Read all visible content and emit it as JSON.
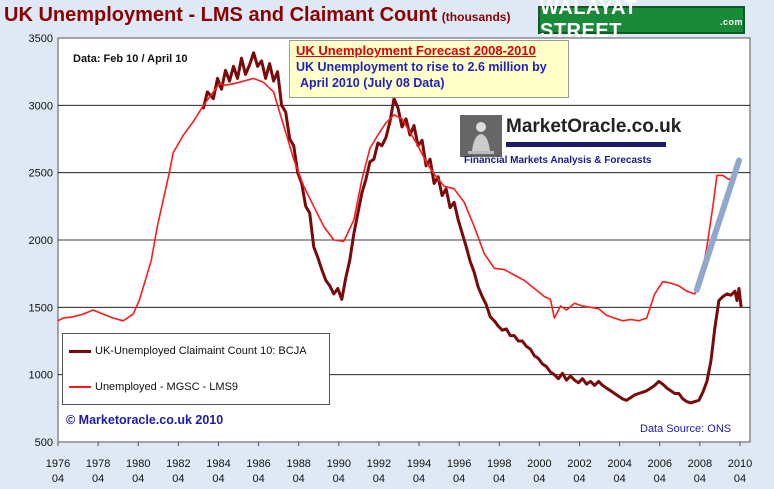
{
  "header": {
    "title": "UK Unemployment - LMS and Claimant Count",
    "title_units": "(thousands)",
    "brand": "WALAYAT STREET",
    "brand_suffix": ".com"
  },
  "forecast_box": {
    "heading": "UK Unemployment  Forecast  2008-2010",
    "line1": "UK Unemployment to rise to 2.6 million by",
    "line2": "April 2010  (July 08 Data)"
  },
  "logo": {
    "name": "MarketOracle.co.uk",
    "tagline": "Financial Markets Analysis & Forecasts"
  },
  "data_note": "Data: Feb 10 / April 10",
  "copyright": "© Marketoracle.co.uk  2010",
  "source": "Data Source: ONS",
  "colors": {
    "claimant": "#7a0a0a",
    "lms": "#ff1a1a",
    "forecast": "#8fa8cc",
    "plot_bg": "#ffffff",
    "page_bg": "#dfe9f5"
  },
  "chart_data": {
    "type": "line",
    "title": "UK Unemployment - LMS and Claimant Count",
    "ylim": [
      500,
      3500
    ],
    "yticks": [
      500,
      1000,
      1500,
      2000,
      2500,
      3000,
      3500
    ],
    "xlim": [
      1976.25,
      2010.75
    ],
    "xticks": [
      {
        "year": "1976",
        "month": "04"
      },
      {
        "year": "1978",
        "month": "04"
      },
      {
        "year": "1980",
        "month": "04"
      },
      {
        "year": "1982",
        "month": "04"
      },
      {
        "year": "1984",
        "month": "04"
      },
      {
        "year": "1986",
        "month": "04"
      },
      {
        "year": "1988",
        "month": "04"
      },
      {
        "year": "1990",
        "month": "04"
      },
      {
        "year": "1992",
        "month": "04"
      },
      {
        "year": "1994",
        "month": "04"
      },
      {
        "year": "1996",
        "month": "04"
      },
      {
        "year": "1998",
        "month": "04"
      },
      {
        "year": "2000",
        "month": "04"
      },
      {
        "year": "2002",
        "month": "04"
      },
      {
        "year": "2004",
        "month": "04"
      },
      {
        "year": "2006",
        "month": "04"
      },
      {
        "year": "2008",
        "month": "04"
      },
      {
        "year": "2010",
        "month": "04"
      }
    ],
    "grid": "horizontal",
    "legend_position": "bottom-left",
    "series": [
      {
        "name": "UK-Unemployed Claimaint Count 10: BCJA",
        "color": "#7a0a0a",
        "points": [
          [
            1983.5,
            2980
          ],
          [
            1983.7,
            3100
          ],
          [
            1984.0,
            3050
          ],
          [
            1984.2,
            3200
          ],
          [
            1984.4,
            3120
          ],
          [
            1984.6,
            3260
          ],
          [
            1984.8,
            3180
          ],
          [
            1985.0,
            3290
          ],
          [
            1985.2,
            3200
          ],
          [
            1985.4,
            3350
          ],
          [
            1985.6,
            3230
          ],
          [
            1985.8,
            3300
          ],
          [
            1986.0,
            3390
          ],
          [
            1986.2,
            3290
          ],
          [
            1986.4,
            3330
          ],
          [
            1986.6,
            3200
          ],
          [
            1986.8,
            3310
          ],
          [
            1987.0,
            3180
          ],
          [
            1987.2,
            3250
          ],
          [
            1987.4,
            3000
          ],
          [
            1987.6,
            2950
          ],
          [
            1987.8,
            2750
          ],
          [
            1988.0,
            2700
          ],
          [
            1988.2,
            2500
          ],
          [
            1988.4,
            2420
          ],
          [
            1988.6,
            2250
          ],
          [
            1988.8,
            2200
          ],
          [
            1989.0,
            1950
          ],
          [
            1989.2,
            1870
          ],
          [
            1989.4,
            1780
          ],
          [
            1989.6,
            1700
          ],
          [
            1989.8,
            1660
          ],
          [
            1990.0,
            1600
          ],
          [
            1990.2,
            1640
          ],
          [
            1990.4,
            1560
          ],
          [
            1990.6,
            1720
          ],
          [
            1990.8,
            1850
          ],
          [
            1991.0,
            2050
          ],
          [
            1991.2,
            2200
          ],
          [
            1991.4,
            2350
          ],
          [
            1991.6,
            2450
          ],
          [
            1991.8,
            2580
          ],
          [
            1992.0,
            2600
          ],
          [
            1992.2,
            2720
          ],
          [
            1992.4,
            2700
          ],
          [
            1992.6,
            2760
          ],
          [
            1992.8,
            2880
          ],
          [
            1993.0,
            3050
          ],
          [
            1993.2,
            2980
          ],
          [
            1993.4,
            2840
          ],
          [
            1993.6,
            2900
          ],
          [
            1993.8,
            2780
          ],
          [
            1994.0,
            2850
          ],
          [
            1994.2,
            2700
          ],
          [
            1994.4,
            2740
          ],
          [
            1994.6,
            2550
          ],
          [
            1994.8,
            2600
          ],
          [
            1995.0,
            2420
          ],
          [
            1995.2,
            2470
          ],
          [
            1995.4,
            2330
          ],
          [
            1995.6,
            2380
          ],
          [
            1995.8,
            2240
          ],
          [
            1996.0,
            2280
          ],
          [
            1996.2,
            2150
          ],
          [
            1996.4,
            2050
          ],
          [
            1996.6,
            1950
          ],
          [
            1996.8,
            1840
          ],
          [
            1997.0,
            1760
          ],
          [
            1997.2,
            1650
          ],
          [
            1997.4,
            1580
          ],
          [
            1997.6,
            1520
          ],
          [
            1997.8,
            1430
          ],
          [
            1998.0,
            1400
          ],
          [
            1998.2,
            1360
          ],
          [
            1998.4,
            1330
          ],
          [
            1998.6,
            1340
          ],
          [
            1998.8,
            1290
          ],
          [
            1999.0,
            1290
          ],
          [
            1999.2,
            1250
          ],
          [
            1999.4,
            1250
          ],
          [
            1999.6,
            1210
          ],
          [
            1999.8,
            1190
          ],
          [
            2000.0,
            1140
          ],
          [
            2000.2,
            1120
          ],
          [
            2000.4,
            1080
          ],
          [
            2000.6,
            1060
          ],
          [
            2000.8,
            1020
          ],
          [
            2001.0,
            1000
          ],
          [
            2001.2,
            970
          ],
          [
            2001.4,
            1010
          ],
          [
            2001.6,
            960
          ],
          [
            2001.8,
            990
          ],
          [
            2002.0,
            960
          ],
          [
            2002.2,
            940
          ],
          [
            2002.4,
            970
          ],
          [
            2002.6,
            930
          ],
          [
            2002.8,
            950
          ],
          [
            2003.0,
            920
          ],
          [
            2003.2,
            950
          ],
          [
            2003.4,
            920
          ],
          [
            2003.6,
            900
          ],
          [
            2003.8,
            880
          ],
          [
            2004.0,
            860
          ],
          [
            2004.2,
            840
          ],
          [
            2004.4,
            820
          ],
          [
            2004.6,
            810
          ],
          [
            2004.8,
            830
          ],
          [
            2005.0,
            850
          ],
          [
            2005.2,
            860
          ],
          [
            2005.4,
            870
          ],
          [
            2005.6,
            880
          ],
          [
            2005.8,
            900
          ],
          [
            2006.0,
            920
          ],
          [
            2006.2,
            950
          ],
          [
            2006.4,
            930
          ],
          [
            2006.6,
            900
          ],
          [
            2006.8,
            880
          ],
          [
            2007.0,
            860
          ],
          [
            2007.2,
            860
          ],
          [
            2007.4,
            820
          ],
          [
            2007.6,
            800
          ],
          [
            2007.8,
            790
          ],
          [
            2008.0,
            800
          ],
          [
            2008.2,
            810
          ],
          [
            2008.4,
            870
          ],
          [
            2008.6,
            950
          ],
          [
            2008.8,
            1100
          ],
          [
            2009.0,
            1350
          ],
          [
            2009.2,
            1550
          ],
          [
            2009.4,
            1580
          ],
          [
            2009.6,
            1600
          ],
          [
            2009.8,
            1590
          ],
          [
            2010.0,
            1620
          ],
          [
            2010.1,
            1550
          ],
          [
            2010.2,
            1640
          ],
          [
            2010.3,
            1510
          ]
        ]
      },
      {
        "name": "Unemployed - MGSC - LMS9",
        "color": "#ff1a1a",
        "points": [
          [
            1976.25,
            1400
          ],
          [
            1976.5,
            1420
          ],
          [
            1977.0,
            1430
          ],
          [
            1977.5,
            1450
          ],
          [
            1978.0,
            1480
          ],
          [
            1978.5,
            1450
          ],
          [
            1979.0,
            1420
          ],
          [
            1979.5,
            1400
          ],
          [
            1980.0,
            1450
          ],
          [
            1980.3,
            1550
          ],
          [
            1980.6,
            1700
          ],
          [
            1980.9,
            1850
          ],
          [
            1981.2,
            2100
          ],
          [
            1981.5,
            2300
          ],
          [
            1981.8,
            2500
          ],
          [
            1982.0,
            2650
          ],
          [
            1982.5,
            2780
          ],
          [
            1983.0,
            2880
          ],
          [
            1983.5,
            3000
          ],
          [
            1984.0,
            3100
          ],
          [
            1984.3,
            3160
          ],
          [
            1984.6,
            3150
          ],
          [
            1985.0,
            3160
          ],
          [
            1985.5,
            3180
          ],
          [
            1986.0,
            3200
          ],
          [
            1986.5,
            3170
          ],
          [
            1987.0,
            3100
          ],
          [
            1987.3,
            2950
          ],
          [
            1987.6,
            2800
          ],
          [
            1988.0,
            2600
          ],
          [
            1988.5,
            2400
          ],
          [
            1989.0,
            2250
          ],
          [
            1989.5,
            2100
          ],
          [
            1990.0,
            2000
          ],
          [
            1990.5,
            1990
          ],
          [
            1991.0,
            2150
          ],
          [
            1991.4,
            2450
          ],
          [
            1991.8,
            2680
          ],
          [
            1992.2,
            2780
          ],
          [
            1992.6,
            2870
          ],
          [
            1993.0,
            2930
          ],
          [
            1993.4,
            2900
          ],
          [
            1993.8,
            2800
          ],
          [
            1994.2,
            2700
          ],
          [
            1994.6,
            2580
          ],
          [
            1995.0,
            2490
          ],
          [
            1995.5,
            2400
          ],
          [
            1996.0,
            2380
          ],
          [
            1996.5,
            2280
          ],
          [
            1997.0,
            2100
          ],
          [
            1997.5,
            1900
          ],
          [
            1998.0,
            1790
          ],
          [
            1998.5,
            1780
          ],
          [
            1999.0,
            1740
          ],
          [
            1999.5,
            1700
          ],
          [
            2000.0,
            1640
          ],
          [
            2000.5,
            1580
          ],
          [
            2000.8,
            1560
          ],
          [
            2001.0,
            1420
          ],
          [
            2001.3,
            1510
          ],
          [
            2001.6,
            1480
          ],
          [
            2002.0,
            1530
          ],
          [
            2002.4,
            1510
          ],
          [
            2002.8,
            1500
          ],
          [
            2003.2,
            1490
          ],
          [
            2003.6,
            1440
          ],
          [
            2004.0,
            1420
          ],
          [
            2004.4,
            1400
          ],
          [
            2004.8,
            1410
          ],
          [
            2005.2,
            1400
          ],
          [
            2005.6,
            1420
          ],
          [
            2006.0,
            1600
          ],
          [
            2006.4,
            1690
          ],
          [
            2006.8,
            1680
          ],
          [
            2007.2,
            1660
          ],
          [
            2007.6,
            1620
          ],
          [
            2008.0,
            1600
          ],
          [
            2008.3,
            1700
          ],
          [
            2008.6,
            1950
          ],
          [
            2008.9,
            2250
          ],
          [
            2009.1,
            2480
          ],
          [
            2009.4,
            2480
          ],
          [
            2009.7,
            2450
          ],
          [
            2010.0,
            2480
          ]
        ]
      },
      {
        "name": "",
        "color": "#8fa8cc",
        "points": [
          [
            2008.1,
            1630
          ],
          [
            2010.2,
            2590
          ]
        ]
      }
    ]
  }
}
